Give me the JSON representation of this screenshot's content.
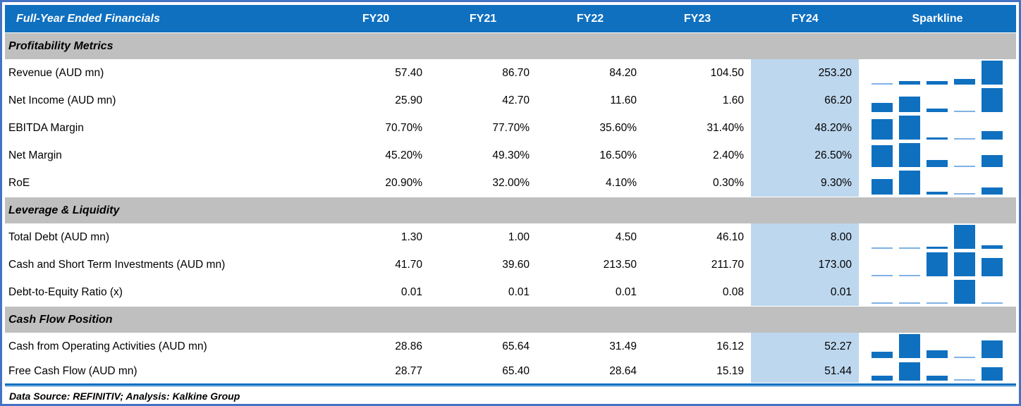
{
  "table": {
    "title": "Full-Year Ended Financials",
    "columns": [
      "FY20",
      "FY21",
      "FY22",
      "FY23",
      "FY24"
    ],
    "sparkline_label": "Sparkline",
    "highlight_column": "FY24",
    "sections": [
      {
        "label": "Profitability Metrics",
        "rows": [
          {
            "label": "Revenue (AUD mn)",
            "values": [
              "57.40",
              "86.70",
              "84.20",
              "104.50",
              "253.20"
            ]
          },
          {
            "label": "Net Income (AUD mn)",
            "values": [
              "25.90",
              "42.70",
              "11.60",
              "1.60",
              "66.20"
            ]
          },
          {
            "label": "EBITDA Margin",
            "values": [
              "70.70%",
              "77.70%",
              "35.60%",
              "31.40%",
              "48.20%"
            ]
          },
          {
            "label": "Net Margin",
            "values": [
              "45.20%",
              "49.30%",
              "16.50%",
              "2.40%",
              "26.50%"
            ]
          },
          {
            "label": "RoE",
            "values": [
              "20.90%",
              "32.00%",
              "4.10%",
              "0.30%",
              "9.30%"
            ]
          }
        ]
      },
      {
        "label": "Leverage & Liquidity",
        "rows": [
          {
            "label": "Total Debt (AUD mn)",
            "values": [
              "1.30",
              "1.00",
              "4.50",
              "46.10",
              "8.00"
            ]
          },
          {
            "label": "Cash and Short Term Investments (AUD mn)",
            "values": [
              "41.70",
              "39.60",
              "213.50",
              "211.70",
              "173.00"
            ]
          },
          {
            "label": "Debt-to-Equity Ratio (x)",
            "values": [
              "0.01",
              "0.01",
              "0.01",
              "0.08",
              "0.01"
            ]
          }
        ]
      },
      {
        "label": "Cash Flow Position",
        "rows": [
          {
            "label": "Cash from Operating Activities (AUD mn)",
            "values": [
              "28.86",
              "65.64",
              "31.49",
              "16.12",
              "52.27"
            ]
          },
          {
            "label": "Free Cash Flow (AUD mn)",
            "values": [
              "28.77",
              "65.40",
              "28.64",
              "15.19",
              "51.44"
            ]
          }
        ]
      }
    ]
  },
  "footer": {
    "text": "Data Source: REFINITIV; Analysis: Kalkine Group"
  },
  "colors": {
    "header_blue": "#0F70C0",
    "highlight_blue": "#BDD7EE",
    "section_gray": "#BFBFBF",
    "bar_blue": "#0F70C0",
    "bar_min_blue": "#7FB2E5",
    "outer_border_blue": "#4472C4"
  },
  "chart_data": {
    "type": "table",
    "title": "Full-Year Ended Financials",
    "categories": [
      "FY20",
      "FY21",
      "FY22",
      "FY23",
      "FY24"
    ],
    "sparkline_type": "bar",
    "sparkline_scaling": "per-row min-max",
    "series": [
      {
        "name": "Revenue (AUD mn)",
        "section": "Profitability Metrics",
        "values": [
          57.4,
          86.7,
          84.2,
          104.5,
          253.2
        ]
      },
      {
        "name": "Net Income (AUD mn)",
        "section": "Profitability Metrics",
        "values": [
          25.9,
          42.7,
          11.6,
          1.6,
          66.2
        ]
      },
      {
        "name": "EBITDA Margin (%)",
        "section": "Profitability Metrics",
        "values": [
          70.7,
          77.7,
          35.6,
          31.4,
          48.2
        ]
      },
      {
        "name": "Net Margin (%)",
        "section": "Profitability Metrics",
        "values": [
          45.2,
          49.3,
          16.5,
          2.4,
          26.5
        ]
      },
      {
        "name": "RoE (%)",
        "section": "Profitability Metrics",
        "values": [
          20.9,
          32.0,
          4.1,
          0.3,
          9.3
        ]
      },
      {
        "name": "Total Debt (AUD mn)",
        "section": "Leverage & Liquidity",
        "values": [
          1.3,
          1.0,
          4.5,
          46.1,
          8.0
        ]
      },
      {
        "name": "Cash and Short Term Investments (AUD mn)",
        "section": "Leverage & Liquidity",
        "values": [
          41.7,
          39.6,
          213.5,
          211.7,
          173.0
        ]
      },
      {
        "name": "Debt-to-Equity Ratio (x)",
        "section": "Leverage & Liquidity",
        "values": [
          0.01,
          0.01,
          0.01,
          0.08,
          0.01
        ]
      },
      {
        "name": "Cash from Operating Activities (AUD mn)",
        "section": "Cash Flow Position",
        "values": [
          28.86,
          65.64,
          31.49,
          16.12,
          52.27
        ]
      },
      {
        "name": "Free Cash Flow (AUD mn)",
        "section": "Cash Flow Position",
        "values": [
          28.77,
          65.4,
          28.64,
          15.19,
          51.44
        ]
      }
    ]
  }
}
